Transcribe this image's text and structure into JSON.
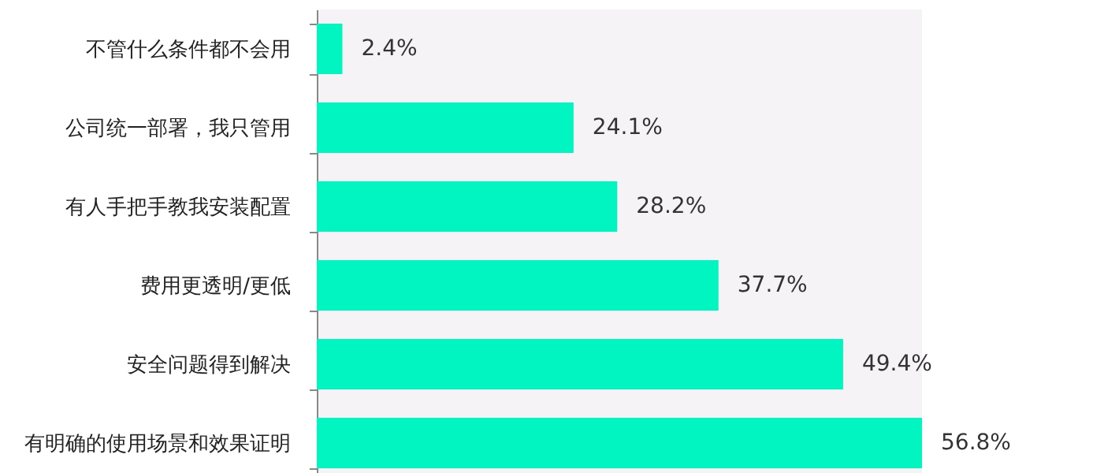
{
  "chart_data": {
    "type": "bar",
    "orientation": "horizontal",
    "categories": [
      "不管什么条件都不会用",
      "公司统一部署，我只管用",
      "有人手把手教我安装配置",
      "费用更透明/更低",
      "安全问题得到解决",
      "有明确的使用场景和效果证明"
    ],
    "values": [
      2.4,
      24.1,
      28.2,
      37.7,
      49.4,
      56.8
    ],
    "value_labels": [
      "2.4%",
      "24.1%",
      "28.2%",
      "37.7%",
      "49.4%",
      "56.8%"
    ],
    "color": "#00f5c0"
  }
}
